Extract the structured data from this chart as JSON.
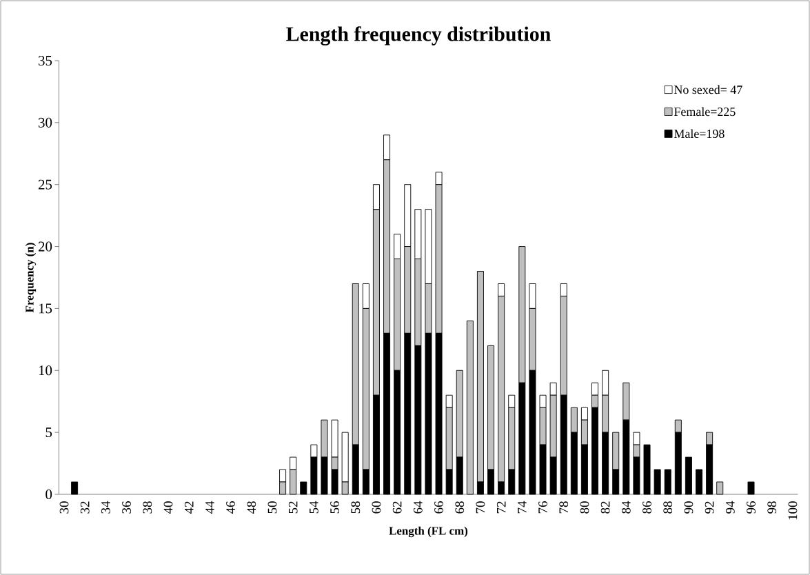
{
  "chart_data": {
    "type": "bar",
    "title": "Length frequency distribution",
    "xlabel": "Length (FL cm)",
    "ylabel": "Frequency (n)",
    "categories": [
      "30",
      null,
      "32",
      null,
      "34",
      null,
      "36",
      null,
      "38",
      null,
      "40",
      null,
      "42",
      null,
      "44",
      null,
      "46",
      null,
      "48",
      null,
      "50",
      null,
      "52",
      null,
      "54",
      null,
      "56",
      null,
      "58",
      null,
      "60",
      null,
      "62",
      null,
      "64",
      null,
      "66",
      null,
      "68",
      null,
      "70",
      null,
      "72",
      null,
      "74",
      null,
      "76",
      null,
      "78",
      null,
      "80",
      null,
      "82",
      null,
      "84",
      null,
      "86",
      null,
      "88",
      null,
      "90",
      null,
      "92",
      null,
      "94",
      null,
      "96",
      null,
      "98",
      null,
      "100"
    ],
    "stacked": true,
    "series": [
      {
        "name": "Male=198",
        "color": "#000000",
        "values": [
          0,
          1,
          0,
          0,
          0,
          0,
          0,
          0,
          0,
          0,
          0,
          0,
          0,
          0,
          0,
          0,
          0,
          0,
          0,
          0,
          0,
          0,
          0,
          1,
          3,
          3,
          2,
          0,
          4,
          2,
          8,
          13,
          10,
          13,
          12,
          13,
          13,
          2,
          3,
          0,
          1,
          2,
          1,
          2,
          9,
          10,
          4,
          3,
          8,
          5,
          4,
          7,
          5,
          2,
          6,
          3,
          4,
          2,
          2,
          5,
          3,
          2,
          4,
          0,
          0,
          0,
          1,
          0,
          0,
          0,
          0
        ]
      },
      {
        "name": "Female=225",
        "color": "#c0c0c0",
        "values": [
          0,
          0,
          0,
          0,
          0,
          0,
          0,
          0,
          0,
          0,
          0,
          0,
          0,
          0,
          0,
          0,
          0,
          0,
          0,
          0,
          0,
          1,
          2,
          0,
          0,
          3,
          1,
          1,
          13,
          13,
          15,
          14,
          9,
          7,
          7,
          4,
          12,
          5,
          7,
          14,
          17,
          10,
          15,
          5,
          11,
          5,
          3,
          5,
          8,
          2,
          2,
          1,
          3,
          3,
          3,
          1,
          0,
          0,
          0,
          1,
          0,
          0,
          1,
          1,
          0,
          0,
          0,
          0,
          0,
          0,
          0
        ]
      },
      {
        "name": "No sexed= 47",
        "color": "#ffffff",
        "values": [
          0,
          0,
          0,
          0,
          0,
          0,
          0,
          0,
          0,
          0,
          0,
          0,
          0,
          0,
          0,
          0,
          0,
          0,
          0,
          0,
          0,
          1,
          1,
          0,
          1,
          0,
          3,
          4,
          0,
          2,
          2,
          2,
          2,
          5,
          4,
          6,
          1,
          1,
          0,
          0,
          0,
          0,
          1,
          1,
          0,
          2,
          1,
          1,
          1,
          0,
          1,
          1,
          2,
          0,
          0,
          1,
          0,
          0,
          0,
          0,
          0,
          0,
          0,
          0,
          0,
          0,
          0,
          0,
          0,
          0,
          0
        ]
      }
    ],
    "ylim": [
      0,
      35
    ],
    "yticks": [
      0,
      5,
      10,
      15,
      20,
      25,
      30,
      35
    ],
    "legend": "top right"
  }
}
